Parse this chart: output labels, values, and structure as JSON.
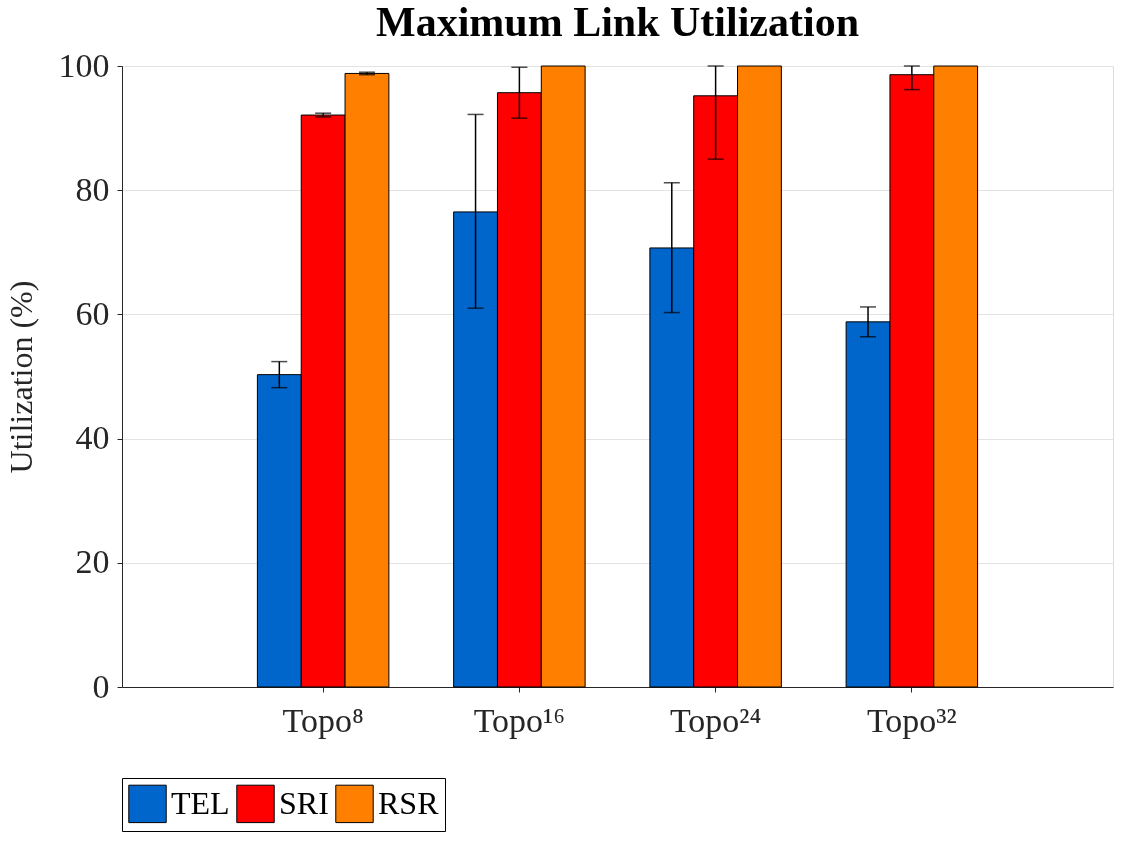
{
  "chart_data": {
    "type": "bar",
    "title": "Maximum Link Utilization",
    "ylabel": "Utilization (%)",
    "categories": [
      "Topo⁸",
      "Topo¹⁶",
      "Topo²⁴",
      "Topo³²"
    ],
    "series": [
      {
        "name": "TEL",
        "color": "#0066cc",
        "values": [
          50.3,
          76.5,
          70.7,
          58.8
        ],
        "errors": [
          [
            48.2,
            52.4
          ],
          [
            61,
            92.2
          ],
          [
            60.3,
            81.2
          ],
          [
            56.4,
            61.2
          ]
        ]
      },
      {
        "name": "SRI",
        "color": "#ff0000",
        "values": [
          92.1,
          95.7,
          95.2,
          98.6
        ],
        "errors": [
          [
            91.8,
            92.4
          ],
          [
            91.6,
            99.8
          ],
          [
            85,
            100
          ],
          [
            96.2,
            100
          ]
        ]
      },
      {
        "name": "RSR",
        "color": "#ff8000",
        "values": [
          98.8,
          100,
          100,
          100
        ],
        "errors": [
          [
            98.6,
            99.0
          ],
          null,
          null,
          null
        ]
      }
    ],
    "ylim": [
      0,
      100
    ],
    "yticks": [
      0,
      20,
      40,
      60,
      80,
      100
    ],
    "grid": "y",
    "legend": "bottom"
  }
}
